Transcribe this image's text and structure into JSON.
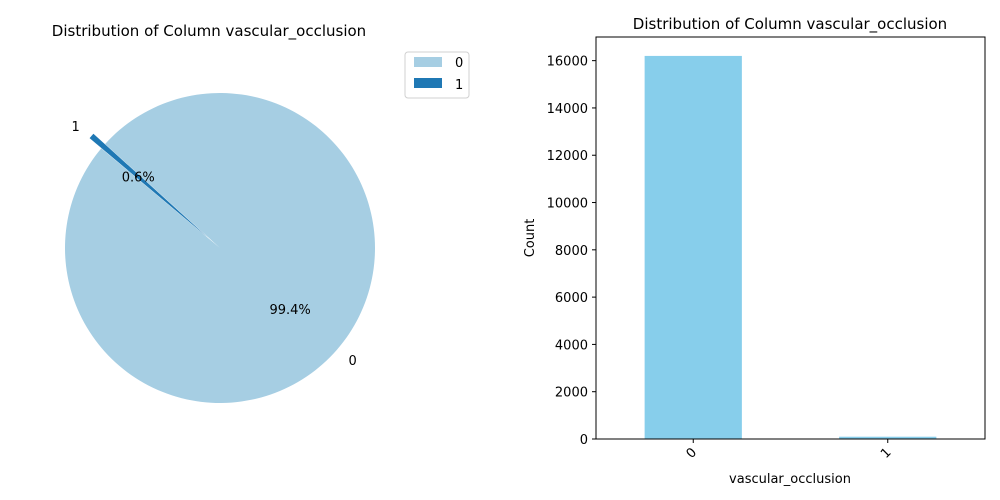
{
  "chart_data": [
    {
      "type": "pie",
      "title": "Distribution of Column vascular_occlusion",
      "labels": [
        "0",
        "1"
      ],
      "values": [
        99.4,
        0.6
      ],
      "autopct": [
        "99.4%",
        "0.6%"
      ],
      "colors": [
        "#a6cee3",
        "#1f78b4"
      ],
      "explode": [
        0,
        0.1
      ],
      "start_angle_deg": 140,
      "legend": {
        "placement": "upper-right-outside",
        "entries": [
          "0",
          "1"
        ]
      }
    },
    {
      "type": "bar",
      "title": "Distribution of Column vascular_occlusion",
      "categories": [
        "0",
        "1"
      ],
      "values": [
        16200,
        97
      ],
      "xlabel": "vascular_occlusion",
      "ylabel": "Count",
      "ylim": [
        0,
        17000
      ],
      "yticks": [
        0,
        2000,
        4000,
        6000,
        8000,
        10000,
        12000,
        14000,
        16000
      ],
      "bar_color": "#87ceeb",
      "xtick_rotation_deg": 45,
      "grid": false
    }
  ]
}
